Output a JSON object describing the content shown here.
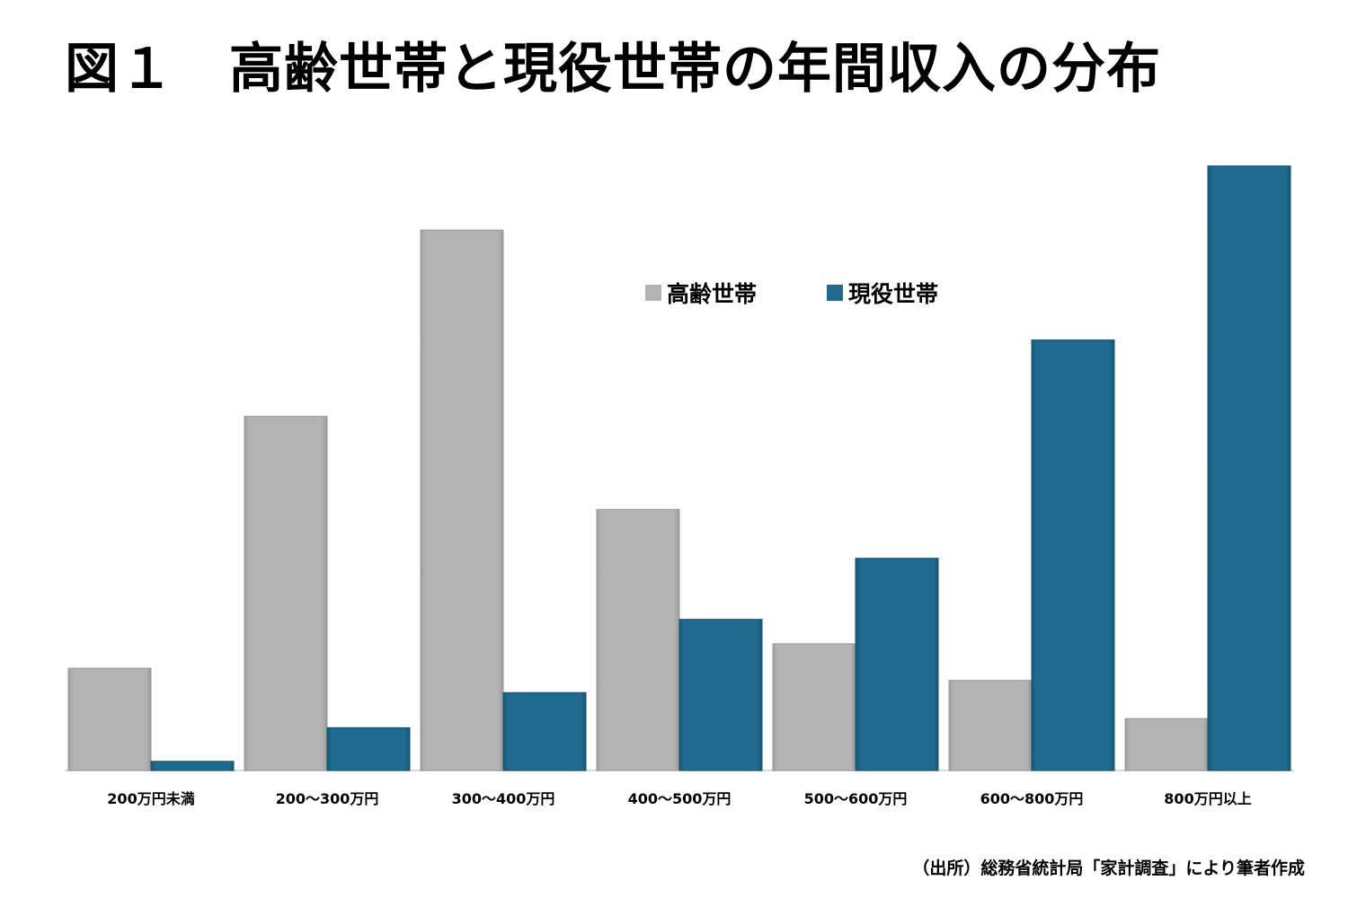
{
  "title": "図１　高齢世帯と現役世帯の年間収入の分布",
  "source": "（出所）総務省統計局「家計調査」により筆者作成",
  "chart_data": {
    "type": "bar",
    "title": "図１　高齢世帯と現役世帯の年間収入の分布",
    "categories": [
      "200万円未満",
      "200～300万円",
      "300～400万円",
      "400～500万円",
      "500～600万円",
      "600～800万円",
      "800万円以上"
    ],
    "series": [
      {
        "name": "高齢世帯",
        "color": "#b3b3b3",
        "values": [
          6.7,
          23.2,
          35.4,
          17.1,
          8.3,
          5.9,
          3.4
        ]
      },
      {
        "name": "現役世帯",
        "color": "#1f6a8e",
        "values": [
          0.6,
          2.8,
          5.1,
          9.9,
          13.9,
          28.2,
          39.6
        ]
      }
    ],
    "ylim": [
      0,
      40
    ],
    "grid": false,
    "legend_position": "top-center",
    "xlabel": "",
    "ylabel": ""
  }
}
